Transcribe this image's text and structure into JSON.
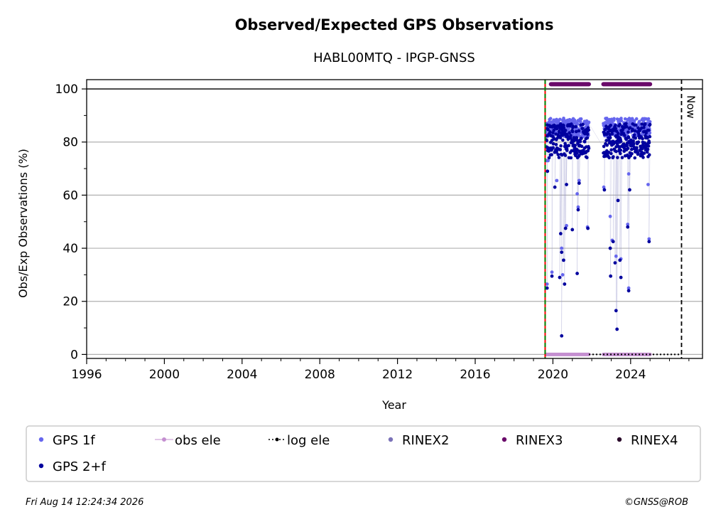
{
  "header": {
    "title": "Observed/Expected GPS Observations",
    "subtitle": "HABL00MTQ - IPGP-GNSS"
  },
  "footer": {
    "timestamp": "Fri Aug 14 12:24:34 2026",
    "credit": "©GNSS@ROB"
  },
  "colors": {
    "gps1f": "#6666ee",
    "gps2f": "#00009e",
    "obs_ele": "#c48fd0",
    "log_ele": "#000000",
    "rinex2": "#7b72b8",
    "rinex3": "#6a0a6a",
    "rinex4": "#2a0a2a",
    "station_start": "#008000"
  },
  "chart_data": {
    "type": "scatter",
    "xlabel": "Year",
    "ylabel": "Obs/Exp Observations (%)",
    "xlim": [
      1996,
      2027.7
    ],
    "ylim": [
      -1.5,
      103.5
    ],
    "x_ticks": [
      1996,
      2000,
      2004,
      2008,
      2012,
      2016,
      2020,
      2024
    ],
    "x_tick_labels": [
      "1996",
      "2000",
      "2004",
      "2008",
      "2012",
      "2016",
      "2020",
      "2024"
    ],
    "y_ticks": [
      0,
      20,
      40,
      60,
      80,
      100
    ],
    "y_tick_labels": [
      "0",
      "20",
      "40",
      "60",
      "80",
      "100"
    ],
    "grid": "horizontal",
    "legend_position": "bottom",
    "now_line": {
      "x": 2026.62,
      "label": "Now"
    },
    "station_start": 2019.6,
    "hundred_line": 100,
    "legend": [
      {
        "key": "gps1f",
        "label": "GPS 1f",
        "marker": "dot"
      },
      {
        "key": "obs_ele",
        "label": "obs ele",
        "marker": "line-dot"
      },
      {
        "key": "log_ele",
        "label": "log ele",
        "marker": "dotted-line"
      },
      {
        "key": "rinex2",
        "label": "RINEX2",
        "marker": "dot"
      },
      {
        "key": "rinex3",
        "label": "RINEX3",
        "marker": "dot"
      },
      {
        "key": "rinex4",
        "label": "RINEX4",
        "marker": "dot"
      },
      {
        "key": "gps2f",
        "label": "GPS 2+f",
        "marker": "dot"
      }
    ],
    "observation_periods": [
      [
        2019.65,
        2021.85
      ],
      [
        2022.6,
        2025.0
      ]
    ],
    "rinex3_periods": [
      [
        2019.9,
        2021.85
      ],
      [
        2022.6,
        2025.0
      ]
    ],
    "obs_ele_periods": [
      [
        2019.65,
        2021.85
      ],
      [
        2022.6,
        2025.0
      ]
    ],
    "log_ele_segment": [
      2021.85,
      2026.62
    ],
    "series": [
      {
        "name": "GPS 1f",
        "key": "gps1f",
        "band": [
          82,
          89
        ],
        "outliers": [
          [
            2019.68,
            73
          ],
          [
            2019.75,
            73
          ],
          [
            2019.7,
            26.5
          ],
          [
            2019.95,
            31
          ],
          [
            2020.2,
            65.5
          ],
          [
            2020.45,
            40
          ],
          [
            2020.5,
            30
          ],
          [
            2020.7,
            48.5
          ],
          [
            2021.25,
            60.5
          ],
          [
            2021.35,
            65.5
          ],
          [
            2021.3,
            55.5
          ],
          [
            2021.78,
            48
          ],
          [
            2022.62,
            63
          ],
          [
            2022.95,
            52
          ],
          [
            2023.05,
            43
          ],
          [
            2023.25,
            37
          ],
          [
            2023.5,
            36
          ],
          [
            2023.85,
            49
          ],
          [
            2023.9,
            25
          ],
          [
            2023.9,
            68
          ],
          [
            2024.9,
            64
          ],
          [
            2024.95,
            43.5
          ]
        ]
      },
      {
        "name": "GPS 2+f",
        "key": "gps2f",
        "band": [
          74,
          87
        ],
        "outliers": [
          [
            2019.72,
            69
          ],
          [
            2019.7,
            25
          ],
          [
            2019.95,
            29.5
          ],
          [
            2020.1,
            63
          ],
          [
            2020.35,
            29
          ],
          [
            2020.4,
            45.5
          ],
          [
            2020.45,
            38.5
          ],
          [
            2020.45,
            7
          ],
          [
            2020.55,
            35.5
          ],
          [
            2020.6,
            26.5
          ],
          [
            2020.65,
            47.5
          ],
          [
            2020.7,
            64
          ],
          [
            2021.0,
            47
          ],
          [
            2021.25,
            30.5
          ],
          [
            2021.3,
            54.5
          ],
          [
            2021.35,
            64.5
          ],
          [
            2021.8,
            47.5
          ],
          [
            2022.65,
            62
          ],
          [
            2022.95,
            40
          ],
          [
            2022.97,
            29.5
          ],
          [
            2023.1,
            42.5
          ],
          [
            2023.2,
            34.5
          ],
          [
            2023.25,
            16.5
          ],
          [
            2023.3,
            9.5
          ],
          [
            2023.35,
            58
          ],
          [
            2023.45,
            35.5
          ],
          [
            2023.5,
            29
          ],
          [
            2023.85,
            48
          ],
          [
            2023.9,
            24
          ],
          [
            2023.95,
            62
          ],
          [
            2024.7,
            78
          ],
          [
            2024.95,
            42.5
          ]
        ]
      }
    ]
  }
}
